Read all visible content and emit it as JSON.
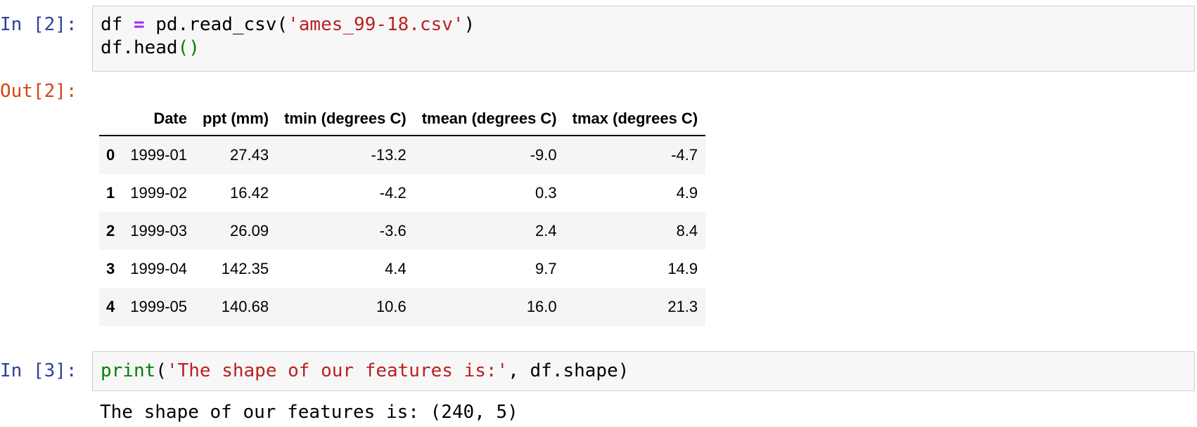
{
  "cell2": {
    "in_prompt": "In [2]:",
    "code_line1": {
      "a": "df ",
      "op": "=",
      "b": " pd.read_csv(",
      "str": "'ames_99-18.csv'",
      "c": ")"
    },
    "code_line2": {
      "a": "df.head",
      "paren": "()"
    },
    "out_prompt": "Out[2]:",
    "table": {
      "columns": [
        "",
        "Date",
        "ppt (mm)",
        "tmin (degrees C)",
        "tmean (degrees C)",
        "tmax (degrees C)"
      ],
      "rows": [
        {
          "index": "0",
          "date": "1999-01",
          "ppt": "27.43",
          "tmin": "-13.2",
          "tmean": "-9.0",
          "tmax": "-4.7"
        },
        {
          "index": "1",
          "date": "1999-02",
          "ppt": "16.42",
          "tmin": "-4.2",
          "tmean": "0.3",
          "tmax": "4.9"
        },
        {
          "index": "2",
          "date": "1999-03",
          "ppt": "26.09",
          "tmin": "-3.6",
          "tmean": "2.4",
          "tmax": "8.4"
        },
        {
          "index": "3",
          "date": "1999-04",
          "ppt": "142.35",
          "tmin": "4.4",
          "tmean": "9.7",
          "tmax": "14.9"
        },
        {
          "index": "4",
          "date": "1999-05",
          "ppt": "140.68",
          "tmin": "10.6",
          "tmean": "16.0",
          "tmax": "21.3"
        }
      ]
    }
  },
  "cell3": {
    "in_prompt": "In [3]:",
    "code": {
      "fn": "print",
      "open": "(",
      "str": "'The shape of our features is:'",
      "rest": ", df.shape)"
    },
    "output": "The shape of our features is: (240, 5)"
  },
  "colors": {
    "in_prompt": "#303f9f",
    "out_prompt": "#d84315",
    "string": "#ba2121",
    "keyword_builtin": "#008000",
    "operator": "#aa22ff"
  }
}
